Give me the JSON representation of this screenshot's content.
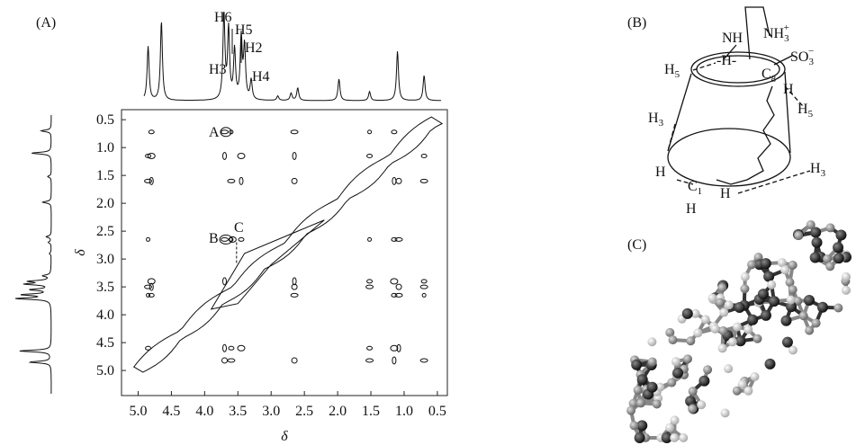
{
  "panel_a": {
    "label": "(A)",
    "x_axis_label": "δ",
    "y_axis_label": "δ",
    "xlim": [
      5.25,
      0.35
    ],
    "ylim": [
      0.32,
      5.45
    ],
    "xticks": [
      {
        "value": 5,
        "label": "5.0"
      },
      4.5,
      {
        "value": 4,
        "label": "4.0"
      },
      3.5,
      {
        "value": 3,
        "label": "3.0"
      },
      2.5,
      {
        "value": 2,
        "label": "2.0"
      },
      1.5,
      {
        "value": 1,
        "label": "1.0"
      },
      0.5
    ],
    "yticks": [
      0.5,
      {
        "value": 1,
        "label": "1.0"
      },
      1.5,
      {
        "value": 2,
        "label": "2.0"
      },
      2.5,
      {
        "value": 3,
        "label": "3.0"
      },
      3.5,
      {
        "value": 4,
        "label": "4.0"
      },
      4.5,
      {
        "value": 5,
        "label": "5.0"
      }
    ],
    "spectrum_labels": [
      "H6",
      "H5",
      "H2",
      "H3",
      "H4"
    ],
    "peak_labels": [
      "A",
      "B",
      "C"
    ]
  },
  "panel_b": {
    "label": "(B)",
    "labels": [
      {
        "base": "NH"
      },
      {
        "base": "NH",
        "sub": "3",
        "sup": "+"
      },
      {
        "base": "SO",
        "sub": "3",
        "sup": "−"
      },
      {
        "base": "-H-"
      },
      {
        "base": "C",
        "sub": "8"
      },
      {
        "base": "H"
      },
      {
        "base": "H",
        "sub": "5"
      },
      {
        "base": "H",
        "sub": "5"
      },
      {
        "base": "H",
        "sub": "3"
      },
      {
        "base": "H",
        "sub": "3"
      },
      {
        "base": "H"
      },
      {
        "base": "C",
        "sub": "1"
      },
      {
        "base": "H"
      },
      {
        "base": "H"
      }
    ]
  },
  "panel_c": {
    "label": "(C)"
  }
}
